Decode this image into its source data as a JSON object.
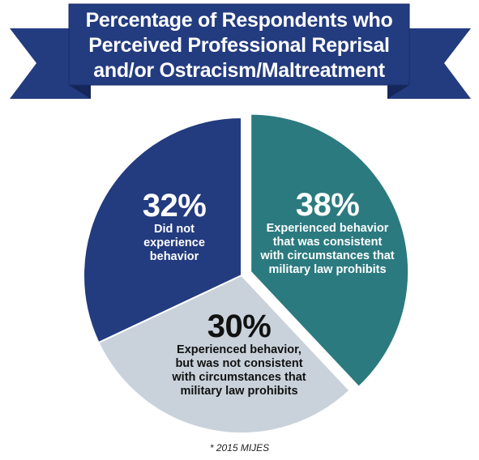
{
  "chart_data": {
    "type": "pie",
    "title_lines": [
      "Percentage of Respondents who",
      "Perceived Professional Reprisal",
      "and/or Ostracism/Maltreatment"
    ],
    "slices": [
      {
        "value": 38,
        "pct_label": "38%",
        "desc_lines": [
          "Experienced behavior",
          "that was consistent",
          "with circumstances that",
          "military law prohibits"
        ],
        "color": "#2b7a7f"
      },
      {
        "value": 30,
        "pct_label": "30%",
        "desc_lines": [
          "Experienced behavior,",
          "but was not consistent",
          "with circumstances that",
          "military law prohibits"
        ],
        "color": "#c9d2db"
      },
      {
        "value": 32,
        "pct_label": "32%",
        "desc_lines": [
          "Did not",
          "experience",
          "behavior"
        ],
        "color": "#233b7f"
      }
    ],
    "footnote": "* 2015 MIJES"
  },
  "colors": {
    "banner_main": "#233b7f",
    "banner_fold": "#15265a",
    "slice_stroke": "#ffffff"
  }
}
